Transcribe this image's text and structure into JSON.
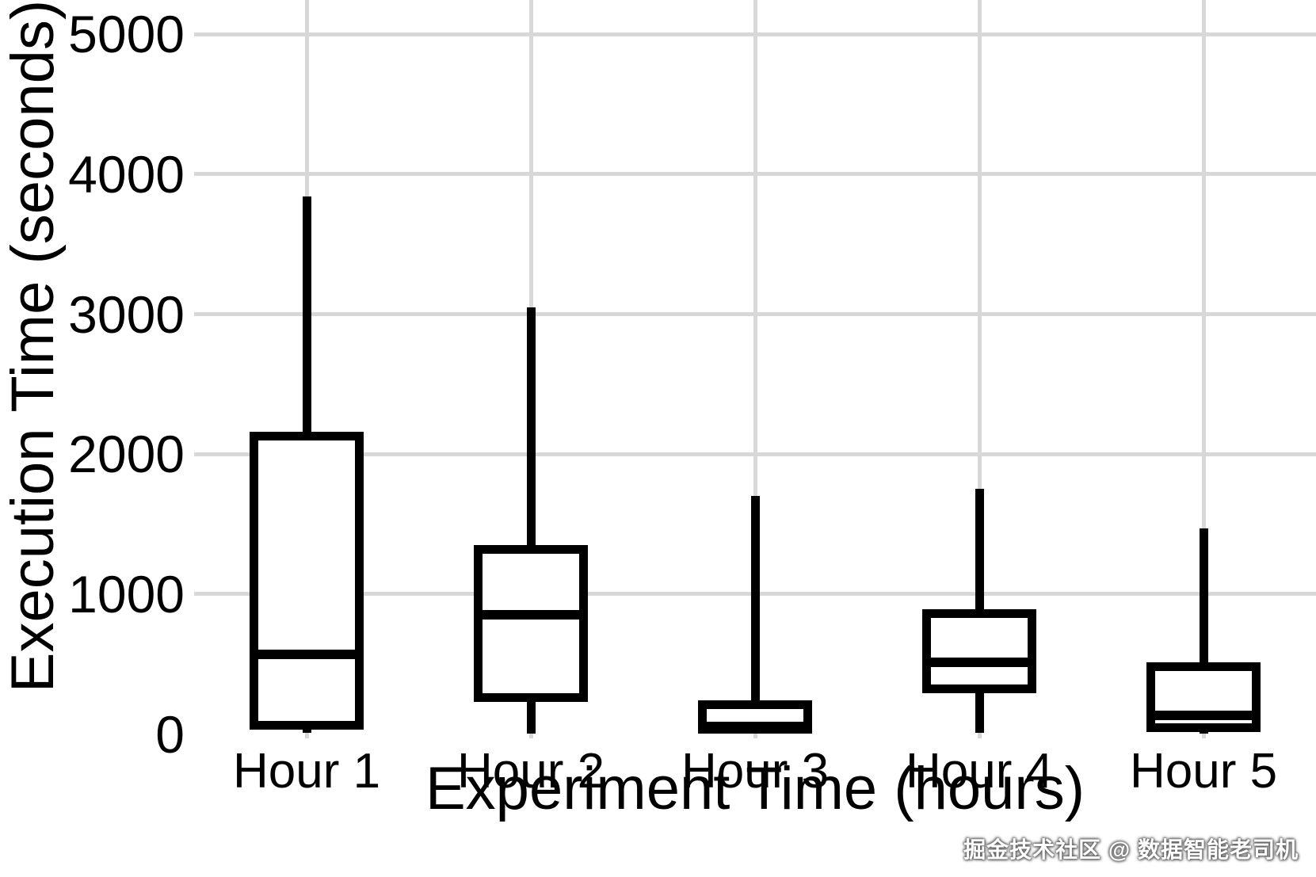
{
  "watermark": {
    "text": "掘金技术社区 @ 数据智能老司机"
  },
  "colors": {
    "stroke": "#000000",
    "box_fill": "#ffffff",
    "grid": "#d8d8d8",
    "background": "#ffffff",
    "watermark_text": "#ffffff"
  },
  "chart_data": {
    "type": "boxplot",
    "title": "",
    "xlabel": "Experiment Time (hours)",
    "ylabel": "Execution Time (seconds)",
    "categories": [
      "Hour 1",
      "Hour 2",
      "Hour 3",
      "Hour 4",
      "Hour 5"
    ],
    "y_ticks": [
      0,
      1000,
      2000,
      3000,
      4000,
      5000
    ],
    "ylim": [
      0,
      5250
    ],
    "grid": "major horizontal lines at 1000-5000 and vertical line at each category; no visible gridline at 0; no legend",
    "legend": null,
    "series": [
      {
        "name": "Hour 1",
        "min": 10,
        "q1": 60,
        "median": 570,
        "q3": 2130,
        "max": 3840
      },
      {
        "name": "Hour 2",
        "min": 5,
        "q1": 260,
        "median": 850,
        "q3": 1320,
        "max": 3050
      },
      {
        "name": "Hour 3",
        "min": 20,
        "q1": 35,
        "median": 55,
        "q3": 210,
        "max": 1700
      },
      {
        "name": "Hour 4",
        "min": 10,
        "q1": 320,
        "median": 510,
        "q3": 860,
        "max": 1750
      },
      {
        "name": "Hour 5",
        "min": 5,
        "q1": 45,
        "median": 135,
        "q3": 480,
        "max": 1470
      }
    ]
  }
}
